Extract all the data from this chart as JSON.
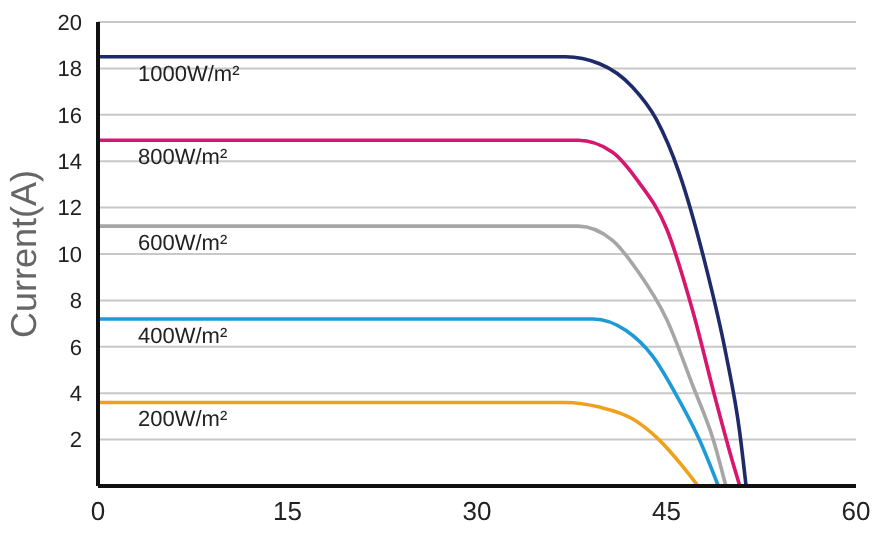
{
  "chart_data": {
    "type": "line",
    "ylabel": "Current(A)",
    "xlim": [
      0,
      60
    ],
    "xticks": [
      0,
      15,
      30,
      45,
      60
    ],
    "ylim": [
      0,
      20
    ],
    "yticks": [
      2,
      4,
      6,
      8,
      10,
      12,
      14,
      16,
      18,
      20
    ],
    "grid": "y",
    "marker": "none",
    "line_style": "solid",
    "series": [
      {
        "name": "1000W/m²",
        "color": "#1f2a6b",
        "x": [
          0,
          37,
          39.7,
          42.3,
          44.2,
          46,
          48.1,
          49.7,
          50.8,
          51.3
        ],
        "values": [
          18.5,
          18.5,
          18.2,
          17.2,
          15.8,
          13.5,
          9.5,
          5.7,
          2.3,
          0
        ]
      },
      {
        "name": "800W/m²",
        "color": "#d6166f",
        "x": [
          0,
          38,
          40.7,
          42.8,
          45,
          47.1,
          48.9,
          50.2,
          50.8
        ],
        "values": [
          14.9,
          14.9,
          14.4,
          13.1,
          11.1,
          7.5,
          3.7,
          1.1,
          0
        ]
      },
      {
        "name": "600W/m²",
        "color": "#a6a6a6",
        "x": [
          0,
          38,
          40.7,
          42.8,
          45,
          47.1,
          48.7,
          49.7
        ],
        "values": [
          11.2,
          11.2,
          10.6,
          9.2,
          7.2,
          4.3,
          2,
          0
        ]
      },
      {
        "name": "400W/m²",
        "color": "#1e9ad6",
        "x": [
          0,
          39.2,
          41.8,
          43.9,
          46,
          47.6,
          49.1
        ],
        "values": [
          7.2,
          7.2,
          6.7,
          5.6,
          3.7,
          2,
          0
        ]
      },
      {
        "name": "200W/m²",
        "color": "#f0a11c",
        "x": [
          0,
          37,
          39.7,
          42.3,
          44.4,
          46.2,
          47.5
        ],
        "values": [
          3.6,
          3.6,
          3.4,
          2.9,
          2,
          0.9,
          0
        ]
      }
    ]
  }
}
